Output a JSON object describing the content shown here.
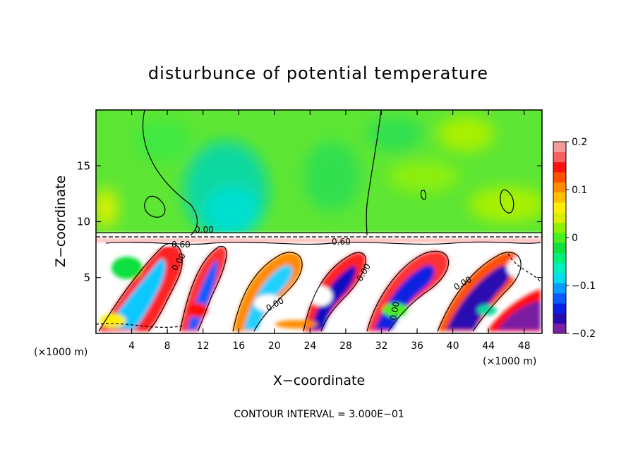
{
  "chart_data": {
    "type": "heatmap",
    "title": "disturbunce of potential temperature",
    "xlabel": "X−coordinate",
    "ylabel": "Z−coordinate",
    "x_unit_left": "(×1000 m)",
    "x_unit_right": "(×1000 m)",
    "xlim": [
      0,
      50
    ],
    "ylim": [
      0,
      20
    ],
    "x_ticks": [
      4,
      8,
      12,
      16,
      20,
      24,
      28,
      32,
      36,
      40,
      44,
      48
    ],
    "y_ticks": [
      5,
      10,
      15
    ],
    "x_tick_labels": [
      "4",
      "8",
      "12",
      "16",
      "20",
      "24",
      "28",
      "32",
      "36",
      "40",
      "44",
      "48"
    ],
    "y_tick_labels": [
      "5",
      "10",
      "15"
    ],
    "colorbar": {
      "range": [
        -0.2,
        0.2
      ],
      "tick_values": [
        0.2,
        0.1,
        0,
        -0.1,
        -0.2
      ],
      "tick_labels": [
        "0.2",
        "0.1",
        "0",
        "−0.1",
        "−0.2"
      ],
      "colors": [
        "#7a1fa2",
        "#2a0bb0",
        "#0a22e0",
        "#0a5cff",
        "#0a9cff",
        "#00dcf0",
        "#00f0c0",
        "#00f07a",
        "#10e040",
        "#48f020",
        "#90f000",
        "#d8f000",
        "#ffee00",
        "#ffc000",
        "#ff8c00",
        "#ff5000",
        "#ff1010",
        "#f56060",
        "#f59a9a"
      ]
    },
    "contour_labels": [
      "0.00",
      "0.60",
      "0.60",
      "0.00",
      "0.00",
      "0.00",
      "0.00",
      "0.00"
    ],
    "note": "CONTOUR INTERVAL = 3.000E−01"
  }
}
